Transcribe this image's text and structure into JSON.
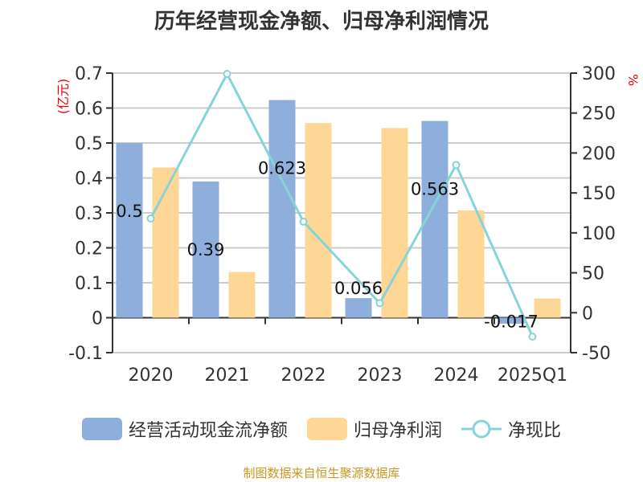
{
  "chart_data": {
    "type": "bar+line",
    "title": "历年经营现金净额、归母净利润情况",
    "categories": [
      "2020",
      "2021",
      "2022",
      "2023",
      "2024",
      "2025Q1"
    ],
    "ylabel_left": "(亿元)",
    "ylabel_right": "%",
    "ylim_left": [
      -0.1,
      0.7
    ],
    "yticks_left": [
      "-0.1",
      "0",
      "0.1",
      "0.2",
      "0.3",
      "0.4",
      "0.5",
      "0.6",
      "0.7"
    ],
    "ylim_right": [
      -50,
      300
    ],
    "yticks_right": [
      "-50",
      "0",
      "50",
      "100",
      "150",
      "200",
      "250",
      "300"
    ],
    "series": [
      {
        "name": "经营活动现金流净额",
        "type": "bar",
        "color": "#8eaedb",
        "values": [
          0.5,
          0.39,
          0.623,
          0.056,
          0.563,
          -0.017
        ],
        "labels": [
          "0.5",
          "0.39",
          "0.623",
          "0.056",
          "0.563",
          "-0.017"
        ]
      },
      {
        "name": "归母净利润",
        "type": "bar",
        "color": "#fed797",
        "values": [
          0.43,
          0.131,
          0.557,
          0.543,
          0.307,
          0.055
        ]
      },
      {
        "name": "净现比",
        "type": "line",
        "axis": "right",
        "color": "#87d4d8",
        "values": [
          118,
          299,
          114,
          12,
          185,
          -30
        ]
      }
    ],
    "legend": "bottom",
    "grid": true
  },
  "source": "制图数据来自恒生聚源数据库"
}
